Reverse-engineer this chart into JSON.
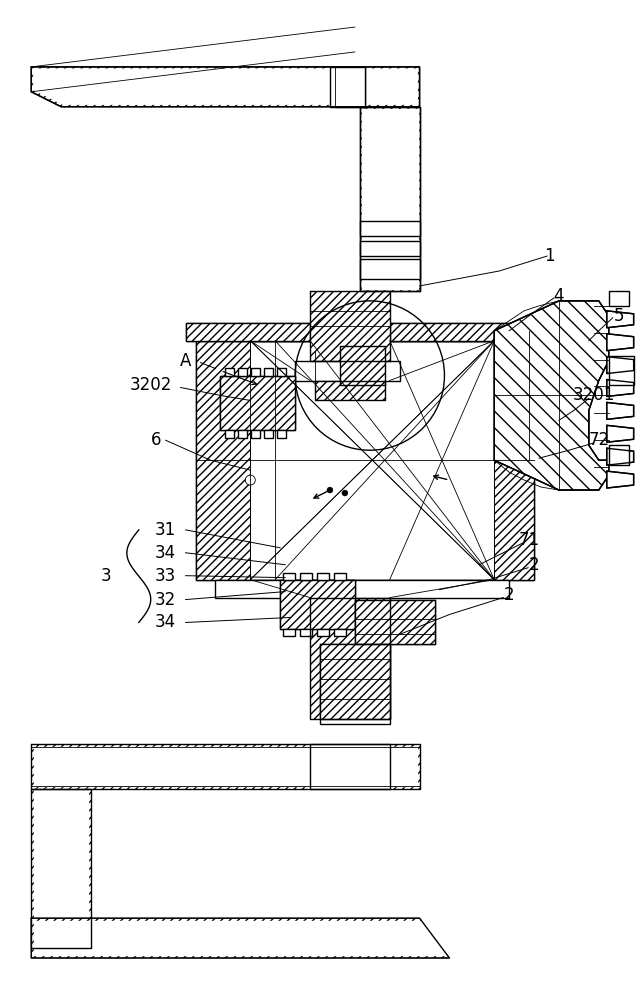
{
  "bg_color": "#ffffff",
  "line_color": "#000000",
  "fig_width": 6.4,
  "fig_height": 10.0,
  "dpi": 100,
  "lw_main": 1.0,
  "lw_thin": 0.6,
  "lw_label": 0.7
}
